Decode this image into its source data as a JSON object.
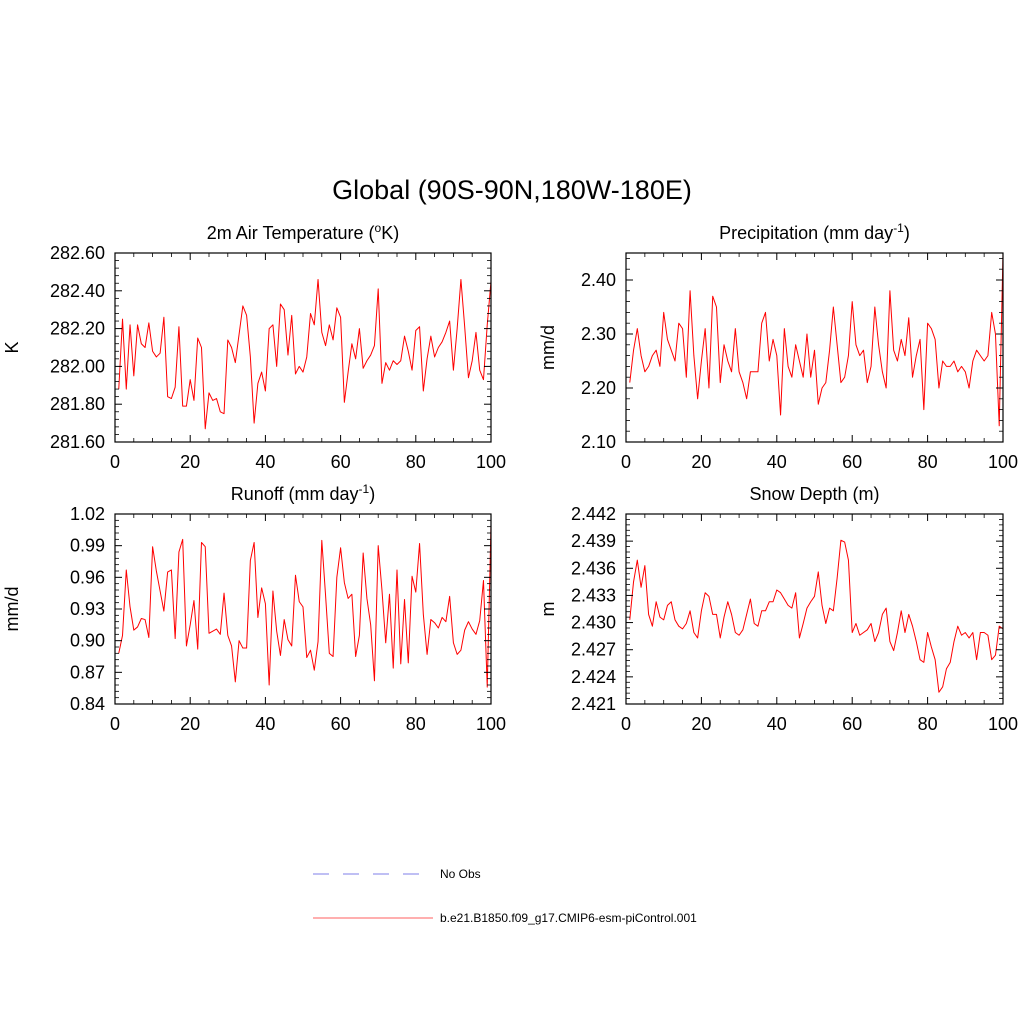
{
  "figure_title": "Global (90S-90N,180W-180E)",
  "chart_data": [
    {
      "type": "line",
      "title": "2m Air Temperature",
      "title_unit_base": "(",
      "title_unit_sup": "o",
      "title_unit_tail": "K)",
      "ylabel": "K",
      "xlim": [
        0,
        100
      ],
      "ylim": [
        281.6,
        282.6
      ],
      "xticks": [
        0,
        20,
        40,
        60,
        80,
        100
      ],
      "xtick_labels": [
        "0",
        "20",
        "40",
        "60",
        "80",
        "100"
      ],
      "yticks": [
        281.6,
        281.8,
        282.0,
        282.2,
        282.4,
        282.6
      ],
      "ytick_labels": [
        "281.60",
        "281.80",
        "282.00",
        "282.20",
        "282.40",
        "282.60"
      ],
      "series": [
        {
          "name": "b.e21.B1850.f09_g17.CMIP6-esm-piControl.001",
          "color": "#ff0000",
          "x_start": 1,
          "values": [
            281.88,
            282.25,
            281.88,
            282.22,
            281.95,
            282.22,
            282.12,
            282.1,
            282.23,
            282.08,
            282.05,
            282.07,
            282.26,
            281.84,
            281.83,
            281.89,
            282.21,
            281.79,
            281.79,
            281.93,
            281.82,
            282.15,
            282.1,
            281.67,
            281.86,
            281.82,
            281.83,
            281.76,
            281.75,
            282.14,
            282.1,
            282.02,
            282.17,
            282.32,
            282.27,
            282.05,
            281.7,
            281.91,
            281.97,
            281.87,
            282.2,
            282.22,
            282.0,
            282.33,
            282.3,
            282.06,
            282.27,
            281.96,
            282.0,
            281.97,
            282.05,
            282.28,
            282.22,
            282.46,
            282.18,
            282.11,
            282.22,
            282.14,
            282.31,
            282.26,
            281.81,
            281.97,
            282.12,
            282.04,
            282.2,
            281.99,
            282.03,
            282.06,
            282.11,
            282.41,
            281.91,
            282.02,
            281.98,
            282.03,
            282.01,
            282.03,
            282.16,
            282.08,
            281.98,
            282.19,
            282.21,
            281.87,
            282.04,
            282.16,
            282.05,
            282.1,
            282.13,
            282.18,
            282.24,
            281.98,
            282.2,
            282.46,
            282.21,
            281.94,
            282.03,
            282.18,
            281.98,
            281.93,
            282.22,
            282.45
          ]
        }
      ]
    },
    {
      "type": "line",
      "title": "Precipitation",
      "title_unit_base": "(mm day",
      "title_unit_sup": "-1",
      "title_unit_tail": ")",
      "ylabel": "mm/d",
      "xlim": [
        0,
        100
      ],
      "ylim": [
        2.1,
        2.45
      ],
      "xticks": [
        0,
        20,
        40,
        60,
        80,
        100
      ],
      "xtick_labels": [
        "0",
        "20",
        "40",
        "60",
        "80",
        "100"
      ],
      "yticks": [
        2.1,
        2.2,
        2.3,
        2.4
      ],
      "ytick_labels": [
        "2.10",
        "2.20",
        "2.30",
        "2.40"
      ],
      "series": [
        {
          "name": "b.e21.B1850.f09_g17.CMIP6-esm-piControl.001",
          "color": "#ff0000",
          "x_start": 1,
          "values": [
            2.21,
            2.27,
            2.31,
            2.26,
            2.23,
            2.24,
            2.26,
            2.27,
            2.24,
            2.34,
            2.29,
            2.27,
            2.25,
            2.32,
            2.31,
            2.22,
            2.38,
            2.26,
            2.18,
            2.25,
            2.31,
            2.2,
            2.37,
            2.35,
            2.21,
            2.28,
            2.25,
            2.23,
            2.31,
            2.23,
            2.21,
            2.18,
            2.23,
            2.23,
            2.23,
            2.32,
            2.34,
            2.25,
            2.29,
            2.26,
            2.15,
            2.31,
            2.24,
            2.22,
            2.28,
            2.25,
            2.22,
            2.3,
            2.22,
            2.27,
            2.17,
            2.2,
            2.21,
            2.27,
            2.35,
            2.28,
            2.21,
            2.22,
            2.26,
            2.36,
            2.28,
            2.26,
            2.27,
            2.21,
            2.24,
            2.35,
            2.28,
            2.23,
            2.2,
            2.38,
            2.27,
            2.25,
            2.29,
            2.26,
            2.33,
            2.22,
            2.26,
            2.29,
            2.16,
            2.32,
            2.31,
            2.29,
            2.2,
            2.25,
            2.24,
            2.24,
            2.25,
            2.23,
            2.24,
            2.23,
            2.2,
            2.25,
            2.27,
            2.26,
            2.25,
            2.26,
            2.34,
            2.3,
            2.13,
            2.45
          ]
        }
      ]
    },
    {
      "type": "line",
      "title": "Runoff",
      "title_unit_base": "(mm day",
      "title_unit_sup": "-1",
      "title_unit_tail": ")",
      "ylabel": "mm/d",
      "xlim": [
        0,
        100
      ],
      "ylim": [
        0.84,
        1.02
      ],
      "xticks": [
        0,
        20,
        40,
        60,
        80,
        100
      ],
      "xtick_labels": [
        "0",
        "20",
        "40",
        "60",
        "80",
        "100"
      ],
      "yticks": [
        0.84,
        0.87,
        0.9,
        0.93,
        0.96,
        0.99,
        1.02
      ],
      "ytick_labels": [
        "0.84",
        "0.87",
        "0.90",
        "0.93",
        "0.96",
        "0.99",
        "1.02"
      ],
      "series": [
        {
          "name": "b.e21.B1850.f09_g17.CMIP6-esm-piControl.001",
          "color": "#ff0000",
          "x_start": 1,
          "values": [
            0.888,
            0.905,
            0.967,
            0.932,
            0.91,
            0.913,
            0.921,
            0.92,
            0.903,
            0.989,
            0.966,
            0.947,
            0.928,
            0.965,
            0.967,
            0.902,
            0.984,
            0.996,
            0.895,
            0.915,
            0.938,
            0.892,
            0.993,
            0.989,
            0.907,
            0.909,
            0.911,
            0.906,
            0.945,
            0.905,
            0.895,
            0.861,
            0.9,
            0.893,
            0.893,
            0.976,
            0.993,
            0.922,
            0.95,
            0.935,
            0.858,
            0.947,
            0.909,
            0.886,
            0.92,
            0.901,
            0.895,
            0.962,
            0.937,
            0.932,
            0.884,
            0.891,
            0.872,
            0.899,
            0.995,
            0.943,
            0.888,
            0.885,
            0.96,
            0.988,
            0.955,
            0.94,
            0.944,
            0.885,
            0.905,
            0.983,
            0.94,
            0.915,
            0.862,
            0.99,
            0.948,
            0.898,
            0.944,
            0.874,
            0.967,
            0.878,
            0.939,
            0.879,
            0.961,
            0.946,
            0.992,
            0.925,
            0.887,
            0.92,
            0.917,
            0.912,
            0.922,
            0.918,
            0.942,
            0.898,
            0.887,
            0.891,
            0.91,
            0.918,
            0.911,
            0.906,
            0.919,
            0.957,
            0.856,
            1.01
          ]
        }
      ]
    },
    {
      "type": "line",
      "title": "Snow Depth (m)",
      "title_unit_base": "",
      "title_unit_sup": "",
      "title_unit_tail": "",
      "ylabel": "m",
      "xlim": [
        0,
        100
      ],
      "ylim": [
        2.421,
        2.442
      ],
      "xticks": [
        0,
        20,
        40,
        60,
        80,
        100
      ],
      "xtick_labels": [
        "0",
        "20",
        "40",
        "60",
        "80",
        "100"
      ],
      "yticks": [
        2.421,
        2.424,
        2.427,
        2.43,
        2.433,
        2.436,
        2.439,
        2.442
      ],
      "ytick_labels": [
        "2.421",
        "2.424",
        "2.427",
        "2.430",
        "2.433",
        "2.436",
        "2.439",
        "2.442"
      ],
      "series": [
        {
          "name": "b.e21.B1850.f09_g17.CMIP6-esm-piControl.001",
          "color": "#ff0000",
          "x_start": 1,
          "values": [
            2.4303,
            2.4345,
            2.4369,
            2.4339,
            2.4363,
            2.4309,
            2.4296,
            2.4323,
            2.4306,
            2.4303,
            2.4319,
            2.4323,
            2.4303,
            2.4296,
            2.4293,
            2.4299,
            2.4313,
            2.4289,
            2.4283,
            2.4313,
            2.4333,
            2.4329,
            2.4309,
            2.4309,
            2.4283,
            2.4306,
            2.4323,
            2.4309,
            2.4289,
            2.4286,
            2.4292,
            2.4309,
            2.4326,
            2.4299,
            2.4296,
            2.4313,
            2.4313,
            2.4323,
            2.4323,
            2.4336,
            2.4333,
            2.4326,
            2.4319,
            2.4316,
            2.4333,
            2.4283,
            2.4299,
            2.4316,
            2.4323,
            2.4329,
            2.4356,
            2.4319,
            2.4299,
            2.4316,
            2.4313,
            2.4349,
            2.4391,
            2.4389,
            2.4369,
            2.4289,
            2.4299,
            2.4286,
            2.4289,
            2.4292,
            2.4299,
            2.4279,
            2.4289,
            2.4309,
            2.4316,
            2.4279,
            2.4269,
            2.4289,
            2.4313,
            2.4289,
            2.4309,
            2.4296,
            2.4279,
            2.4259,
            2.4256,
            2.4289,
            2.4273,
            2.4259,
            2.4223,
            2.4229,
            2.4249,
            2.4256,
            2.4279,
            2.4296,
            2.4286,
            2.4289,
            2.4283,
            2.4289,
            2.4259,
            2.4289,
            2.4289,
            2.4286,
            2.4259,
            2.4264,
            2.4296,
            2.4293
          ]
        }
      ]
    }
  ],
  "legend": [
    {
      "label": "No Obs",
      "style": "dashed",
      "color": "#9999ee"
    },
    {
      "label": "b.e21.B1850.f09_g17.CMIP6-esm-piControl.001",
      "style": "solid",
      "color": "#ff0000"
    }
  ]
}
